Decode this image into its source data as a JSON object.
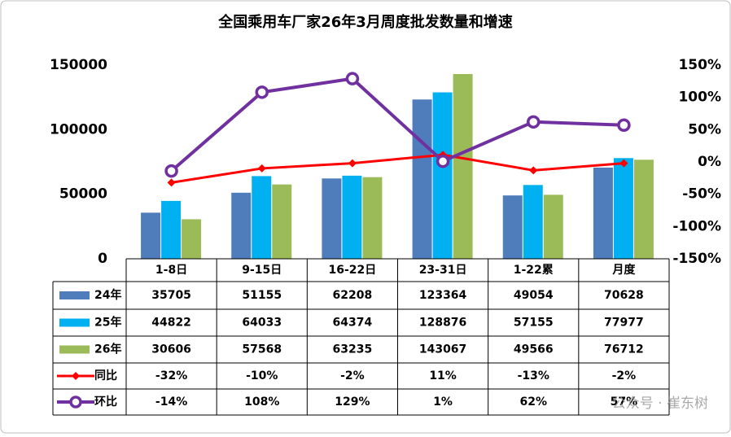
{
  "chart_data": {
    "type": "bar",
    "title": "全国乘用车厂家26年3月周度批发数量和增速",
    "categories": [
      "1-8日",
      "9-15日",
      "16-22日",
      "23-31日",
      "1-22累",
      "月度"
    ],
    "series": [
      {
        "name": "24年",
        "type": "bar",
        "color": "#4f7cba",
        "values": [
          35705,
          51155,
          62208,
          123364,
          49054,
          70628
        ]
      },
      {
        "name": "25年",
        "type": "bar",
        "color": "#00b0f0",
        "values": [
          44822,
          64033,
          64374,
          128876,
          57155,
          77977
        ]
      },
      {
        "name": "26年",
        "type": "bar",
        "color": "#9bbb59",
        "values": [
          30606,
          57568,
          63235,
          143067,
          49566,
          76712
        ]
      },
      {
        "name": "同比",
        "type": "line",
        "axis": "y2",
        "color": "#ff0000",
        "values": [
          -32,
          -10,
          -2,
          11,
          -13,
          -2
        ],
        "value_labels": [
          "-32%",
          "-10%",
          "-2%",
          "11%",
          "-13%",
          "-2%"
        ]
      },
      {
        "name": "环比",
        "type": "line",
        "axis": "y2",
        "color": "#7030a0",
        "values": [
          -14,
          108,
          129,
          1,
          62,
          57
        ],
        "value_labels": [
          "-14%",
          "108%",
          "129%",
          "1%",
          "62%",
          "57%"
        ]
      }
    ],
    "ylim": [
      0,
      150000
    ],
    "yticks": [
      0,
      50000,
      100000,
      150000
    ],
    "y2lim": [
      -150,
      150
    ],
    "y2ticks": [
      {
        "value": -150,
        "label": "-150%"
      },
      {
        "value": -100,
        "label": "-100%"
      },
      {
        "value": -50,
        "label": "-50%"
      },
      {
        "value": 0,
        "label": "0%"
      },
      {
        "value": 50,
        "label": "50%"
      },
      {
        "value": 100,
        "label": "100%"
      },
      {
        "value": 150,
        "label": "150%"
      }
    ],
    "watermark": "公众号 · 崔东树"
  }
}
